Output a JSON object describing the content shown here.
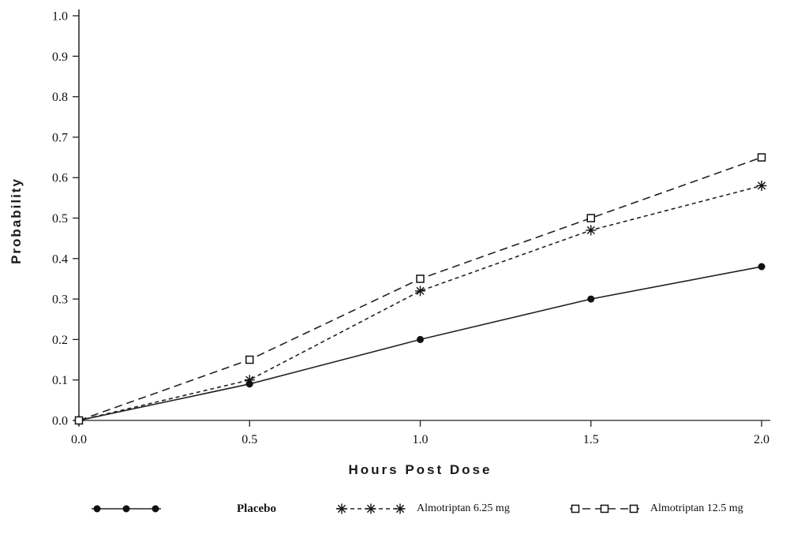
{
  "chart_data": {
    "type": "line",
    "title": "",
    "xlabel": "Hours Post Dose",
    "ylabel": "Probability",
    "x": [
      0.0,
      0.5,
      1.0,
      1.5,
      2.0
    ],
    "xlim": [
      0.0,
      2.0
    ],
    "ylim": [
      0.0,
      1.0
    ],
    "x_ticks": [
      "0.0",
      "0.5",
      "1.0",
      "1.5",
      "2.0"
    ],
    "y_ticks": [
      "0.0",
      "0.1",
      "0.2",
      "0.3",
      "0.4",
      "0.5",
      "0.6",
      "0.7",
      "0.8",
      "0.9",
      "1.0"
    ],
    "grid": false,
    "legend_position": "bottom",
    "series": [
      {
        "name": "Placebo",
        "marker": "circle",
        "line": "solid",
        "values": [
          0.0,
          0.09,
          0.2,
          0.3,
          0.38
        ]
      },
      {
        "name": "Almotriptan 6.25 mg",
        "marker": "asterisk",
        "line": "dashed-fine",
        "values": [
          0.0,
          0.1,
          0.32,
          0.47,
          0.58
        ]
      },
      {
        "name": "Almotriptan 12.5 mg",
        "marker": "square",
        "line": "dashed",
        "values": [
          0.0,
          0.15,
          0.35,
          0.5,
          0.65
        ]
      }
    ]
  },
  "colors": {
    "line": "#222222",
    "marker": "#111111",
    "background": "#ffffff"
  }
}
